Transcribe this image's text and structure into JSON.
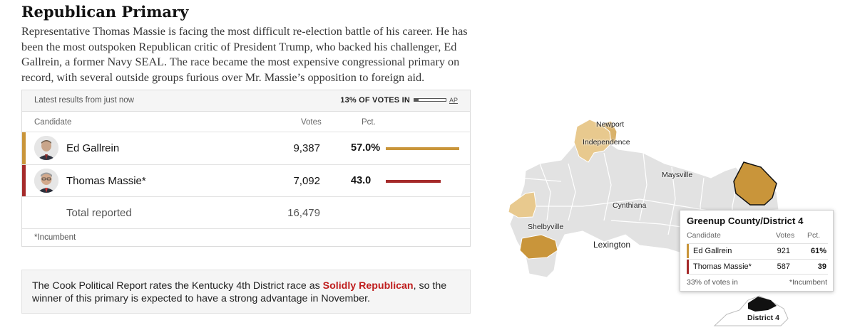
{
  "header": {
    "title": "Republican Primary",
    "intro": "Representative Thomas Massie is facing the most difficult re-election battle of his career. He has been the most outspoken Republican critic of President Trump, who backed his challenger, Ed Gallrein, a former Navy SEAL. The race became the most expensive congressional primary on record, with several outside groups furious over Mr. Massie’s opposition to foreign aid."
  },
  "results": {
    "latest": "Latest results from just now",
    "votes_in": "13% OF VOTES IN",
    "votes_in_fraction": 0.13,
    "source_link": "AP",
    "col_candidate": "Candidate",
    "col_votes": "Votes",
    "col_pct": "Pct.",
    "candidates": [
      {
        "name": "Ed Gallrein",
        "votes": "9,387",
        "pct": "57.0%",
        "pct_value": 57.0,
        "color": "#c9953a"
      },
      {
        "name": "Thomas Massie*",
        "votes": "7,092",
        "pct": "43.0",
        "pct_value": 43.0,
        "color": "#a52a2a"
      }
    ],
    "total_label": "Total reported",
    "total_votes": "16,479",
    "footnote": "*Incumbent"
  },
  "cook": {
    "before": "The Cook Political Report rates the Kentucky 4th District race as ",
    "highlight": "Solidly Republican",
    "after": ", so the winner of this primary is expected to have a strong advantage in November."
  },
  "map": {
    "labels": {
      "newport": "Newport",
      "independence": "Independence",
      "maysville": "Maysville",
      "cynthiana": "Cynthiana",
      "shelbyville": "Shelbyville",
      "lexington": "Lexington",
      "district": "District 4"
    },
    "colors": {
      "gallrein": "#c9953a",
      "gallrein_light": "#e8c98e",
      "uncounted": "#e0e0e0",
      "inset": "#111111"
    }
  },
  "tooltip": {
    "title": "Greenup County/District 4",
    "col_candidate": "Candidate",
    "col_votes": "Votes",
    "col_pct": "Pct.",
    "rows": [
      {
        "name": "Ed Gallrein",
        "votes": "921",
        "pct": "61%",
        "color": "#c9953a"
      },
      {
        "name": "Thomas Massie*",
        "votes": "587",
        "pct": "39",
        "color": "#a52a2a"
      }
    ],
    "votes_in": "33% of votes in",
    "footnote": "*Incumbent"
  }
}
